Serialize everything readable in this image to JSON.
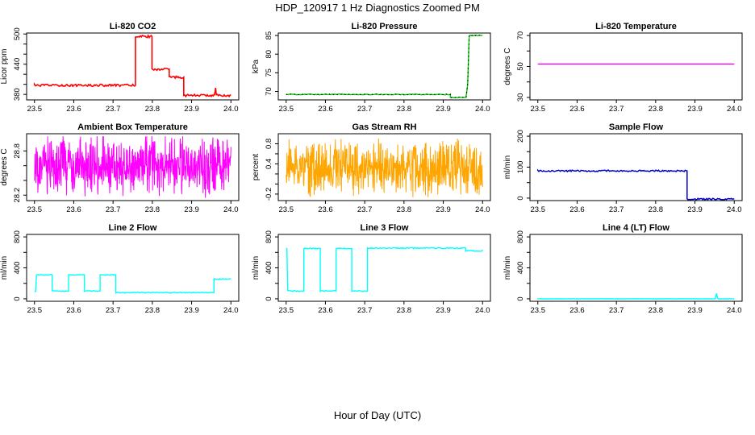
{
  "figure": {
    "title": "HDP_120917  1 Hz Diagnostics Zoomed PM",
    "xlabel": "Hour of Day (UTC)",
    "background": "#FFFFFF",
    "axis_color": "#000000"
  },
  "chart_data": [
    {
      "type": "line",
      "title": "Li-820 CO2",
      "ylabel": "Licor ppm",
      "color": "#FF0000",
      "line_width": 1.6,
      "x_range": [
        23.5,
        24.0
      ],
      "y_range": [
        374,
        497
      ],
      "xticks": [
        {
          "v": 23.5,
          "t": "23.5"
        },
        {
          "v": 23.6,
          "t": "23.6"
        },
        {
          "v": 23.7,
          "t": "23.7"
        },
        {
          "v": 23.8,
          "t": "23.8"
        },
        {
          "v": 23.9,
          "t": "23.9"
        },
        {
          "v": 24.0,
          "t": "24.0"
        }
      ],
      "yticks_all": [
        380,
        400,
        420,
        440,
        460,
        480,
        500
      ],
      "yticks_labeled": [
        {
          "v": 380,
          "t": "380"
        },
        {
          "v": 440,
          "t": "440"
        },
        {
          "v": 500,
          "t": "500"
        }
      ],
      "series": {
        "kind": "steps",
        "noise": 2.2,
        "points": [
          [
            23.5,
            398
          ],
          [
            23.757,
            398
          ],
          [
            23.757,
            495
          ],
          [
            23.799,
            495
          ],
          [
            23.799,
            430
          ],
          [
            23.843,
            430
          ],
          [
            23.843,
            414
          ],
          [
            23.88,
            414
          ],
          [
            23.88,
            378
          ],
          [
            23.958,
            378
          ],
          [
            23.961,
            393
          ],
          [
            23.963,
            378
          ],
          [
            24.0,
            378
          ]
        ]
      }
    },
    {
      "type": "line",
      "title": "Li-820 Pressure",
      "ylabel": "kPa",
      "color": "#00CC00",
      "line_width": 1.4,
      "x_range": [
        23.5,
        24.0
      ],
      "y_range": [
        68.4,
        85
      ],
      "xticks": [
        {
          "v": 23.5,
          "t": "23.5"
        },
        {
          "v": 23.6,
          "t": "23.6"
        },
        {
          "v": 23.7,
          "t": "23.7"
        },
        {
          "v": 23.8,
          "t": "23.8"
        },
        {
          "v": 23.9,
          "t": "23.9"
        },
        {
          "v": 24.0,
          "t": "24.0"
        }
      ],
      "yticks_all": [
        70,
        75,
        80,
        85
      ],
      "yticks_labeled": [
        {
          "v": 70,
          "t": "70"
        },
        {
          "v": 75,
          "t": "75"
        },
        {
          "v": 80,
          "t": "80"
        },
        {
          "v": 85,
          "t": "85"
        }
      ],
      "series": {
        "kind": "steps",
        "noise": 0.1,
        "points": [
          [
            23.5,
            69.2
          ],
          [
            23.918,
            69.2
          ],
          [
            23.918,
            68.4
          ],
          [
            23.958,
            68.4
          ],
          [
            23.962,
            72
          ],
          [
            23.966,
            85
          ],
          [
            24.0,
            85
          ]
        ]
      },
      "overlay": {
        "style": "dotted",
        "color": "#000000"
      }
    },
    {
      "type": "line",
      "title": "Li-820 Temperature",
      "ylabel": "degrees C",
      "color": "#EE00EE",
      "line_width": 1.4,
      "x_range": [
        23.5,
        24.0
      ],
      "y_range": [
        30,
        70
      ],
      "xticks": [
        {
          "v": 23.5,
          "t": "23.5"
        },
        {
          "v": 23.6,
          "t": "23.6"
        },
        {
          "v": 23.7,
          "t": "23.7"
        },
        {
          "v": 23.8,
          "t": "23.8"
        },
        {
          "v": 23.9,
          "t": "23.9"
        },
        {
          "v": 24.0,
          "t": "24.0"
        }
      ],
      "yticks_all": [
        30,
        40,
        50,
        60,
        70
      ],
      "yticks_labeled": [
        {
          "v": 30,
          "t": "30"
        },
        {
          "v": 50,
          "t": "50"
        },
        {
          "v": 70,
          "t": "70"
        }
      ],
      "series": {
        "kind": "steps",
        "noise": 0,
        "points": [
          [
            23.5,
            51.5
          ],
          [
            24.0,
            51.5
          ]
        ]
      }
    },
    {
      "type": "line",
      "title": "Ambient Box Temperature",
      "ylabel": "degrees C",
      "color": "#FF00FF",
      "line_width": 1,
      "x_range": [
        23.5,
        24.0
      ],
      "y_range": [
        28.16,
        29.0
      ],
      "xticks": [
        {
          "v": 23.5,
          "t": "23.5"
        },
        {
          "v": 23.6,
          "t": "23.6"
        },
        {
          "v": 23.7,
          "t": "23.7"
        },
        {
          "v": 23.8,
          "t": "23.8"
        },
        {
          "v": 23.9,
          "t": "23.9"
        },
        {
          "v": 24.0,
          "t": "24.0"
        }
      ],
      "yticks_all": [
        28.2,
        28.4,
        28.6,
        28.8
      ],
      "yticks_labeled": [
        {
          "v": 28.2,
          "t": "28.2"
        },
        {
          "v": 28.8,
          "t": "28.8"
        }
      ],
      "series": {
        "kind": "band",
        "mean": 28.6,
        "half_range": 0.45,
        "clamp": [
          28.16,
          29.0
        ],
        "n": 700
      }
    },
    {
      "type": "line",
      "title": "Gas Stream RH",
      "ylabel": "percent",
      "color": "#FFA500",
      "line_width": 1,
      "x_range": [
        23.5,
        24.0
      ],
      "y_range": [
        -0.28,
        0.95
      ],
      "xticks": [
        {
          "v": 23.5,
          "t": "23.5"
        },
        {
          "v": 23.6,
          "t": "23.6"
        },
        {
          "v": 23.7,
          "t": "23.7"
        },
        {
          "v": 23.8,
          "t": "23.8"
        },
        {
          "v": 23.9,
          "t": "23.9"
        },
        {
          "v": 24.0,
          "t": "24.0"
        }
      ],
      "yticks_all": [
        -0.2,
        0.0,
        0.2,
        0.4,
        0.6,
        0.8
      ],
      "yticks_labeled": [
        {
          "v": -0.2,
          "t": "-0.2"
        },
        {
          "v": 0.4,
          "t": "0.4"
        },
        {
          "v": 0.8,
          "t": "0.8"
        }
      ],
      "series": {
        "kind": "band",
        "mean": 0.33,
        "half_range": 0.62,
        "clamp": [
          -0.28,
          0.95
        ],
        "n": 750
      }
    },
    {
      "type": "line",
      "title": "Sample Flow",
      "ylabel": "ml/min",
      "color": "#0000CC",
      "line_width": 1.5,
      "x_range": [
        23.5,
        24.0
      ],
      "y_range": [
        0,
        200
      ],
      "xticks": [
        {
          "v": 23.5,
          "t": "23.5"
        },
        {
          "v": 23.6,
          "t": "23.6"
        },
        {
          "v": 23.7,
          "t": "23.7"
        },
        {
          "v": 23.8,
          "t": "23.8"
        },
        {
          "v": 23.9,
          "t": "23.9"
        },
        {
          "v": 24.0,
          "t": "24.0"
        }
      ],
      "yticks_all": [
        0,
        50,
        100,
        150,
        200
      ],
      "yticks_labeled": [
        {
          "v": 0,
          "t": "0"
        },
        {
          "v": 100,
          "t": "100"
        },
        {
          "v": 200,
          "t": "200"
        }
      ],
      "series": {
        "kind": "steps",
        "noise": 2.5,
        "points": [
          [
            23.5,
            88
          ],
          [
            23.88,
            88
          ],
          [
            23.88,
            -3
          ],
          [
            24.0,
            -3
          ]
        ]
      }
    },
    {
      "type": "line",
      "title": "Line 2 Flow",
      "ylabel": "ml/min",
      "color": "#00FFFF",
      "line_width": 1.4,
      "x_range": [
        23.5,
        24.0
      ],
      "y_range": [
        0,
        800
      ],
      "xticks": [
        {
          "v": 23.5,
          "t": "23.5"
        },
        {
          "v": 23.6,
          "t": "23.6"
        },
        {
          "v": 23.7,
          "t": "23.7"
        },
        {
          "v": 23.8,
          "t": "23.8"
        },
        {
          "v": 23.9,
          "t": "23.9"
        },
        {
          "v": 24.0,
          "t": "24.0"
        }
      ],
      "yticks_all": [
        0,
        200,
        400,
        600,
        800
      ],
      "yticks_labeled": [
        {
          "v": 0,
          "t": "0"
        },
        {
          "v": 400,
          "t": "400"
        },
        {
          "v": 800,
          "t": "800"
        }
      ],
      "series": {
        "kind": "steps",
        "noise": 5,
        "points": [
          [
            23.5,
            95
          ],
          [
            23.503,
            95
          ],
          [
            23.505,
            310
          ],
          [
            23.545,
            310
          ],
          [
            23.545,
            100
          ],
          [
            23.587,
            100
          ],
          [
            23.587,
            310
          ],
          [
            23.627,
            310
          ],
          [
            23.627,
            100
          ],
          [
            23.667,
            100
          ],
          [
            23.667,
            310
          ],
          [
            23.707,
            310
          ],
          [
            23.707,
            80
          ],
          [
            23.957,
            80
          ],
          [
            23.957,
            255
          ],
          [
            24.0,
            255
          ]
        ]
      }
    },
    {
      "type": "line",
      "title": "Line 3 Flow",
      "ylabel": "ml/min",
      "color": "#00FFFF",
      "line_width": 1.4,
      "x_range": [
        23.5,
        24.0
      ],
      "y_range": [
        0,
        800
      ],
      "xticks": [
        {
          "v": 23.5,
          "t": "23.5"
        },
        {
          "v": 23.6,
          "t": "23.6"
        },
        {
          "v": 23.7,
          "t": "23.7"
        },
        {
          "v": 23.8,
          "t": "23.8"
        },
        {
          "v": 23.9,
          "t": "23.9"
        },
        {
          "v": 24.0,
          "t": "24.0"
        }
      ],
      "yticks_all": [
        0,
        200,
        400,
        600,
        800
      ],
      "yticks_labeled": [
        {
          "v": 0,
          "t": "0"
        },
        {
          "v": 400,
          "t": "400"
        },
        {
          "v": 800,
          "t": "800"
        }
      ],
      "series": {
        "kind": "steps",
        "noise": 7,
        "points": [
          [
            23.5,
            650
          ],
          [
            23.502,
            650
          ],
          [
            23.504,
            100
          ],
          [
            23.545,
            100
          ],
          [
            23.545,
            650
          ],
          [
            23.587,
            650
          ],
          [
            23.587,
            100
          ],
          [
            23.627,
            100
          ],
          [
            23.627,
            650
          ],
          [
            23.667,
            650
          ],
          [
            23.667,
            100
          ],
          [
            23.707,
            100
          ],
          [
            23.707,
            655
          ],
          [
            23.957,
            655
          ],
          [
            23.957,
            620
          ],
          [
            24.0,
            620
          ]
        ]
      }
    },
    {
      "type": "line",
      "title": "Line 4 (LT) Flow",
      "ylabel": "ml/min",
      "color": "#00FFFF",
      "line_width": 1.4,
      "x_range": [
        23.5,
        24.0
      ],
      "y_range": [
        0,
        800
      ],
      "xticks": [
        {
          "v": 23.5,
          "t": "23.5"
        },
        {
          "v": 23.6,
          "t": "23.6"
        },
        {
          "v": 23.7,
          "t": "23.7"
        },
        {
          "v": 23.8,
          "t": "23.8"
        },
        {
          "v": 23.9,
          "t": "23.9"
        },
        {
          "v": 24.0,
          "t": "24.0"
        }
      ],
      "yticks_all": [
        0,
        200,
        400,
        600,
        800
      ],
      "yticks_labeled": [
        {
          "v": 0,
          "t": "0"
        },
        {
          "v": 400,
          "t": "400"
        },
        {
          "v": 800,
          "t": "800"
        }
      ],
      "series": {
        "kind": "steps",
        "noise": 1.5,
        "points": [
          [
            23.5,
            0
          ],
          [
            23.952,
            0
          ],
          [
            23.955,
            70
          ],
          [
            23.958,
            0
          ],
          [
            24.0,
            0
          ]
        ]
      }
    }
  ]
}
